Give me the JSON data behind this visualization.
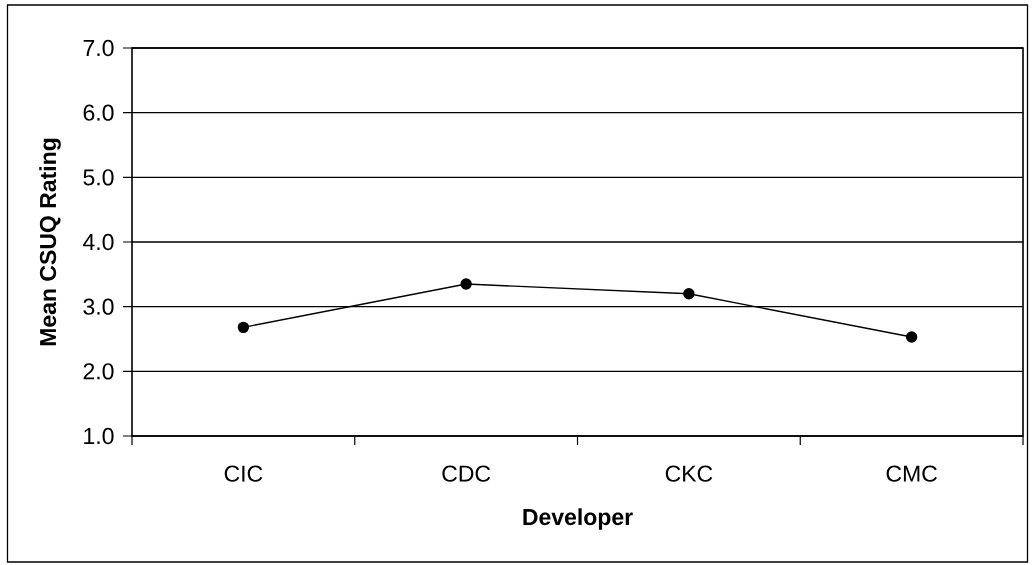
{
  "chart_data": {
    "type": "line",
    "xlabel": "Developer",
    "ylabel": "Mean CSUQ Rating",
    "categories": [
      "CIC",
      "CDC",
      "CKC",
      "CMC"
    ],
    "series": [
      {
        "color": "#000000",
        "values": [
          2.68,
          3.35,
          3.2,
          2.53
        ]
      }
    ],
    "ylim": [
      1,
      7
    ],
    "yticks": [
      {
        "value": 1,
        "label": "1.0"
      },
      {
        "value": 2,
        "label": "2.0"
      },
      {
        "value": 3,
        "label": "3.0"
      },
      {
        "value": 4,
        "label": "4.0"
      },
      {
        "value": 5,
        "label": "5.0"
      },
      {
        "value": 6,
        "label": "6.0"
      },
      {
        "value": 7,
        "label": "7.0"
      }
    ],
    "grid": "y",
    "marker": "circle",
    "line_style": "solid"
  }
}
